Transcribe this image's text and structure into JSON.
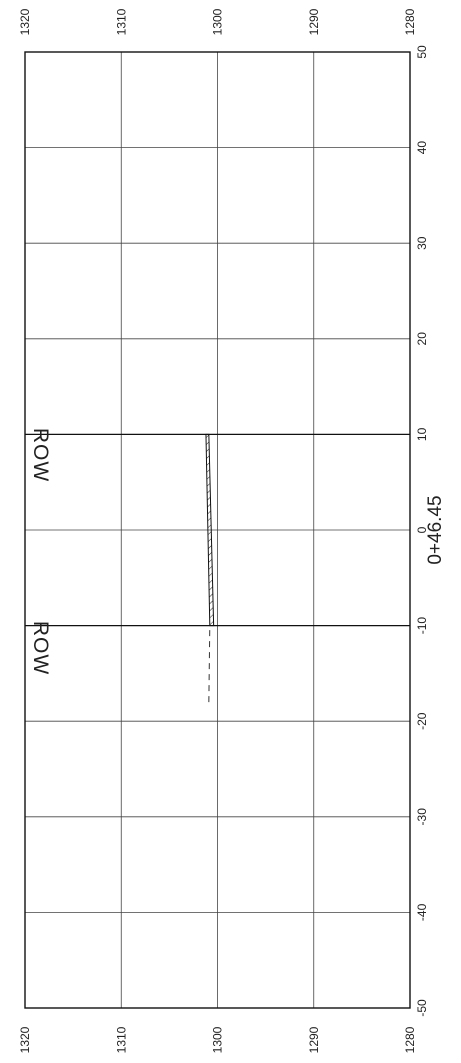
{
  "section": {
    "station_label": "0+46.45",
    "row_label": "ROW",
    "offsets": [
      -50,
      -40,
      -30,
      -20,
      -10,
      0,
      10,
      20,
      30,
      40,
      50
    ],
    "elevations": [
      1280,
      1290,
      1300,
      1310,
      1320
    ],
    "offset_labels": [
      "-50",
      "-40",
      "-30",
      "-20",
      "-10",
      "0",
      "10",
      "20",
      "30",
      "40",
      "50"
    ],
    "elev_labels_left": [
      "1320",
      "1310",
      "1300",
      "1290",
      "1280"
    ],
    "elev_labels_top": [
      "1320",
      "1310",
      "1300",
      "1290",
      "1280"
    ],
    "row_offsets": [
      -10,
      10
    ],
    "proposed_surface": [
      [
        -10,
        1300.8
      ],
      [
        10,
        1301.2
      ]
    ],
    "proposed_surface_bottom": [
      [
        -10,
        1300.4
      ],
      [
        10,
        1300.9
      ]
    ],
    "existing_ground": [
      [
        -18,
        1300.9
      ],
      [
        -10,
        1300.8
      ]
    ]
  }
}
